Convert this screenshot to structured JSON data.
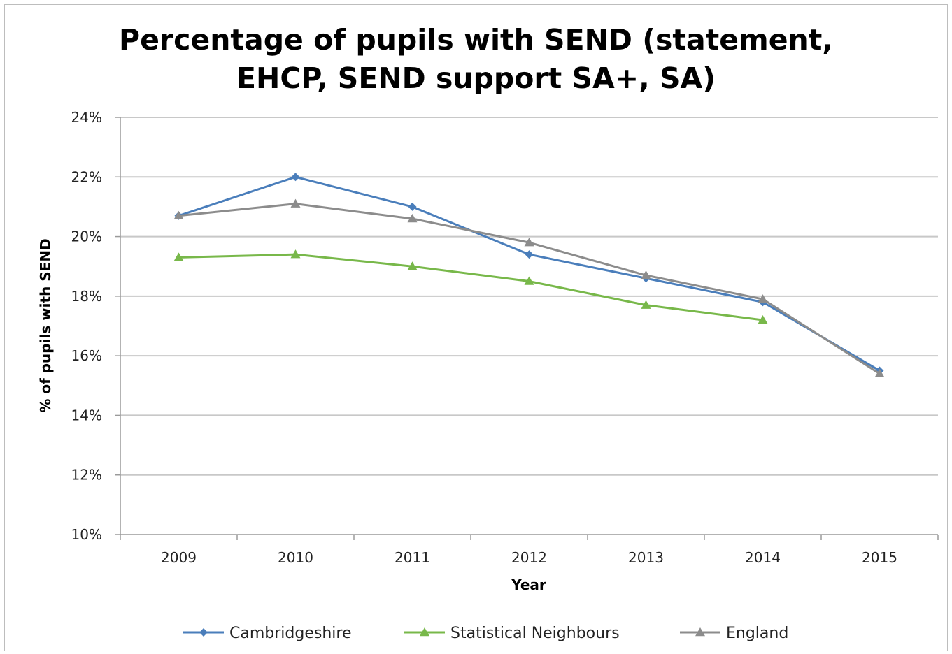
{
  "chart_data": {
    "type": "line",
    "title": "Percentage of pupils with SEND (statement, EHCP, SEND support SA+, SA)",
    "title_lines": [
      "Percentage of pupils with SEND (statement,",
      "EHCP, SEND support SA+, SA)"
    ],
    "xlabel": "Year",
    "ylabel": "% of pupils with SEND",
    "categories": [
      "2009",
      "2010",
      "2011",
      "2012",
      "2013",
      "2014",
      "2015"
    ],
    "yticks": [
      "10%",
      "12%",
      "14%",
      "16%",
      "18%",
      "20%",
      "22%",
      "24%"
    ],
    "ylim": [
      10,
      24
    ],
    "grid": true,
    "legend_position": "bottom",
    "series": [
      {
        "name": "Cambridgeshire",
        "marker": "diamond",
        "color": "#4a7ebb",
        "values": [
          20.7,
          22.0,
          21.0,
          19.4,
          18.6,
          17.8,
          15.5
        ]
      },
      {
        "name": "Statistical Neighbours",
        "marker": "triangle",
        "color": "#78b84a",
        "values": [
          19.3,
          19.4,
          19.0,
          18.5,
          17.7,
          17.2,
          null
        ]
      },
      {
        "name": "England",
        "marker": "triangle",
        "color": "#8c8c8c",
        "values": [
          20.7,
          21.1,
          20.6,
          19.8,
          18.7,
          17.9,
          15.4
        ]
      }
    ]
  }
}
